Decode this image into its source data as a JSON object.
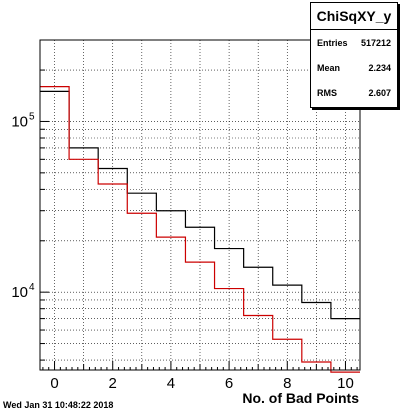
{
  "timestamp": "Wed Jan 31 10:48:22 2018",
  "stats": {
    "title": "ChiSqXY_y",
    "rows": [
      {
        "label": "Entries",
        "value": "517212"
      },
      {
        "label": "Mean",
        "value": "2.234"
      },
      {
        "label": "RMS",
        "value": "2.607"
      }
    ]
  },
  "chart_data": {
    "type": "histogram",
    "title": "",
    "xlabel": "No. of Bad Points",
    "ylabel": "",
    "x_ticks": [
      "0",
      "2",
      "4",
      "6",
      "8",
      "10"
    ],
    "y_ticks": [
      {
        "value": 10000,
        "base": "10",
        "exp": "4"
      },
      {
        "value": 100000,
        "base": "10",
        "exp": "5"
      }
    ],
    "xlim": [
      -0.5,
      10.5
    ],
    "ylim": [
      3500,
      300000
    ],
    "y_scale": "log",
    "grid": true,
    "bin_edges": [
      -0.5,
      0.5,
      1.5,
      2.5,
      3.5,
      4.5,
      5.5,
      6.5,
      7.5,
      8.5,
      9.5,
      10.5
    ],
    "series": [
      {
        "color": "#000000",
        "values": [
          150000,
          70000,
          53000,
          38000,
          30000,
          24000,
          18000,
          14000,
          11000,
          8700,
          7000
        ]
      },
      {
        "color": "#cc0000",
        "values": [
          160000,
          60000,
          43000,
          29000,
          21000,
          15000,
          10500,
          7300,
          5300,
          3900,
          3400
        ]
      }
    ]
  }
}
